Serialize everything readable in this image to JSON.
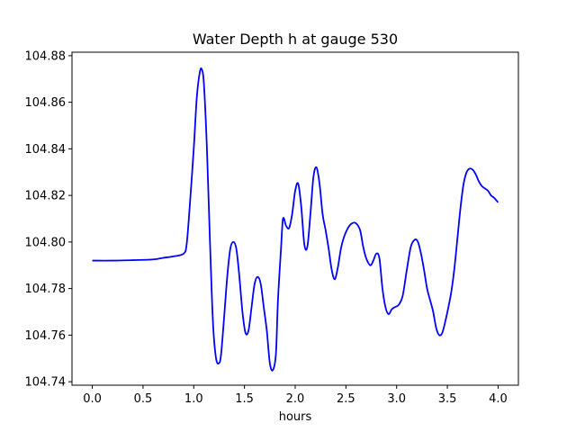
{
  "chart_data": {
    "type": "line",
    "title": "Water Depth h at gauge 530",
    "xlabel": "hours",
    "ylabel": "",
    "xlim": [
      -0.2,
      4.2
    ],
    "ylim": [
      104.7385,
      104.8815
    ],
    "xticks": [
      0.0,
      0.5,
      1.0,
      1.5,
      2.0,
      2.5,
      3.0,
      3.5,
      4.0
    ],
    "xtick_labels": [
      "0.0",
      "0.5",
      "1.0",
      "1.5",
      "2.0",
      "2.5",
      "3.0",
      "3.5",
      "4.0"
    ],
    "yticks": [
      104.74,
      104.76,
      104.78,
      104.8,
      104.82,
      104.84,
      104.86,
      104.88
    ],
    "ytick_labels": [
      "104.74",
      "104.76",
      "104.78",
      "104.80",
      "104.82",
      "104.84",
      "104.86",
      "104.88"
    ],
    "grid": false,
    "series": [
      {
        "color": "#0000ff",
        "x": [
          0.0,
          0.2,
          0.4,
          0.6,
          0.7,
          0.8,
          0.9,
          0.93,
          0.96,
          1.0,
          1.03,
          1.06,
          1.08,
          1.1,
          1.13,
          1.16,
          1.19,
          1.22,
          1.25,
          1.27,
          1.3,
          1.33,
          1.36,
          1.39,
          1.42,
          1.45,
          1.48,
          1.51,
          1.54,
          1.57,
          1.6,
          1.63,
          1.66,
          1.69,
          1.72,
          1.75,
          1.78,
          1.81,
          1.83,
          1.86,
          1.88,
          1.91,
          1.94,
          1.97,
          2.0,
          2.03,
          2.06,
          2.09,
          2.12,
          2.15,
          2.18,
          2.21,
          2.24,
          2.27,
          2.3,
          2.33,
          2.36,
          2.39,
          2.42,
          2.45,
          2.48,
          2.52,
          2.56,
          2.6,
          2.64,
          2.67,
          2.7,
          2.74,
          2.77,
          2.8,
          2.83,
          2.86,
          2.89,
          2.92,
          2.95,
          2.98,
          3.02,
          3.06,
          3.1,
          3.14,
          3.18,
          3.21,
          3.24,
          3.27,
          3.3,
          3.33,
          3.36,
          3.39,
          3.42,
          3.45,
          3.48,
          3.51,
          3.54,
          3.57,
          3.6,
          3.63,
          3.66,
          3.69,
          3.72,
          3.75,
          3.78,
          3.81,
          3.84,
          3.87,
          3.9,
          3.93,
          3.96,
          4.0
        ],
        "y": [
          104.792,
          104.792,
          104.7922,
          104.7925,
          104.7932,
          104.7938,
          104.795,
          104.799,
          104.815,
          104.84,
          104.862,
          104.873,
          104.874,
          104.868,
          104.84,
          104.8,
          104.765,
          104.75,
          104.748,
          104.752,
          104.768,
          104.785,
          104.797,
          104.8,
          104.797,
          104.785,
          104.77,
          104.761,
          104.762,
          104.772,
          104.782,
          104.785,
          104.782,
          104.772,
          104.762,
          104.748,
          104.745,
          104.752,
          104.775,
          104.797,
          104.81,
          104.807,
          104.806,
          104.812,
          104.822,
          104.825,
          104.815,
          104.799,
          104.798,
          104.812,
          104.828,
          104.832,
          104.825,
          104.812,
          104.805,
          104.797,
          104.788,
          104.784,
          104.789,
          104.797,
          104.802,
          104.806,
          104.808,
          104.808,
          104.805,
          104.798,
          104.793,
          104.79,
          104.792,
          104.795,
          104.793,
          104.78,
          104.772,
          104.769,
          104.771,
          104.772,
          104.773,
          104.777,
          104.788,
          104.798,
          104.801,
          104.8,
          104.795,
          104.788,
          104.78,
          104.775,
          104.77,
          104.763,
          104.76,
          104.761,
          104.766,
          104.772,
          104.779,
          104.789,
          104.802,
          104.815,
          104.825,
          104.83,
          104.8315,
          104.831,
          104.829,
          104.826,
          104.824,
          104.823,
          104.822,
          104.82,
          104.819,
          104.817
        ]
      }
    ]
  }
}
